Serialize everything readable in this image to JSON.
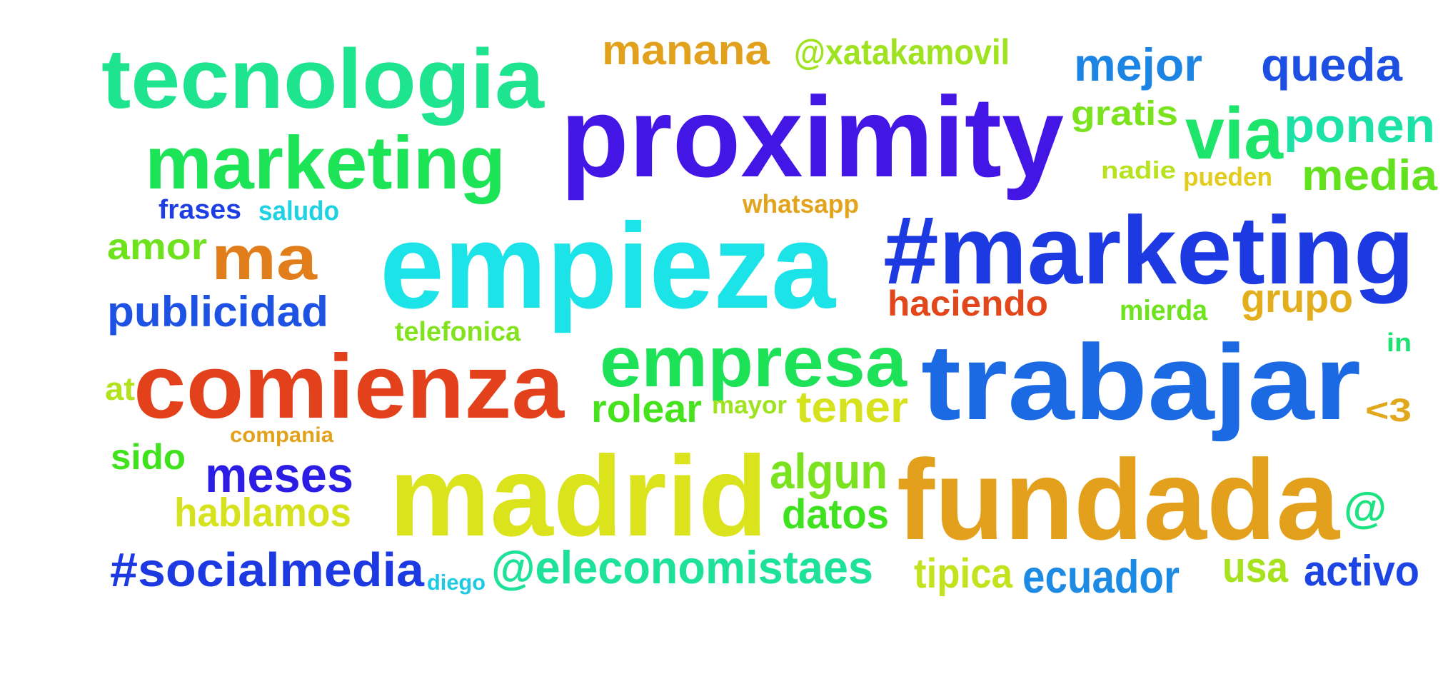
{
  "words": [
    {
      "text": "proximity",
      "color": "#4316e6"
    },
    {
      "text": "tecnologia",
      "color": "#1ee38f"
    },
    {
      "text": "marketing",
      "color": "#1de457"
    },
    {
      "text": "manana",
      "color": "#e2a11c"
    },
    {
      "text": "@xatakamovil",
      "color": "#9fe21f"
    },
    {
      "text": "mejor",
      "color": "#1c84e3"
    },
    {
      "text": "queda",
      "color": "#1d4fe3"
    },
    {
      "text": "gratis",
      "color": "#7be21e"
    },
    {
      "text": "via",
      "color": "#1de46b"
    },
    {
      "text": "ponen",
      "color": "#1de2a8"
    },
    {
      "text": "nadie",
      "color": "#b6e21f"
    },
    {
      "text": "pueden",
      "color": "#e2cc1e"
    },
    {
      "text": "media",
      "color": "#62e21e"
    },
    {
      "text": "frases",
      "color": "#1d3ee3"
    },
    {
      "text": "saludo",
      "color": "#1ed1e3"
    },
    {
      "text": "whatsapp",
      "color": "#e2a41c"
    },
    {
      "text": "empieza",
      "color": "#1be3e8"
    },
    {
      "text": "#marketing",
      "color": "#1d3ae2"
    },
    {
      "text": "amor",
      "color": "#6fe21e"
    },
    {
      "text": "ma",
      "color": "#e27d1c"
    },
    {
      "text": "publicidad",
      "color": "#1d52e3"
    },
    {
      "text": "haciendo",
      "color": "#e2461b"
    },
    {
      "text": "mierda",
      "color": "#6fe21e"
    },
    {
      "text": "grupo",
      "color": "#e2ae1c"
    },
    {
      "text": "telefonica",
      "color": "#83e21e"
    },
    {
      "text": "comienza",
      "color": "#e2411c"
    },
    {
      "text": "empresa",
      "color": "#1de258"
    },
    {
      "text": "trabajar",
      "color": "#1c6ae3"
    },
    {
      "text": "in",
      "color": "#1de272"
    },
    {
      "text": "at",
      "color": "#b3e21e"
    },
    {
      "text": "rolear",
      "color": "#47e21e"
    },
    {
      "text": "mayor",
      "color": "#9fe21f"
    },
    {
      "text": "tener",
      "color": "#d6e21e"
    },
    {
      "text": "<3",
      "color": "#e2a81c"
    },
    {
      "text": "compania",
      "color": "#e2a21c"
    },
    {
      "text": "sido",
      "color": "#40e21e"
    },
    {
      "text": "meses",
      "color": "#2b1de3"
    },
    {
      "text": "madrid",
      "color": "#dbe31d"
    },
    {
      "text": "algun",
      "color": "#7ae21e"
    },
    {
      "text": "fundada",
      "color": "#e2a01c"
    },
    {
      "text": "hablamos",
      "color": "#d6e21e"
    },
    {
      "text": "datos",
      "color": "#3fe21e"
    },
    {
      "text": "@",
      "color": "#1de281"
    },
    {
      "text": "#socialmedia",
      "color": "#1d3ae2"
    },
    {
      "text": "diego",
      "color": "#1dc9e3"
    },
    {
      "text": "@eleconomistaes",
      "color": "#1ee29a"
    },
    {
      "text": "tipica",
      "color": "#c5e21e"
    },
    {
      "text": "ecuador",
      "color": "#1d8ae3"
    },
    {
      "text": "usa",
      "color": "#a7e21e"
    },
    {
      "text": "activo",
      "color": "#1d45e3"
    }
  ]
}
